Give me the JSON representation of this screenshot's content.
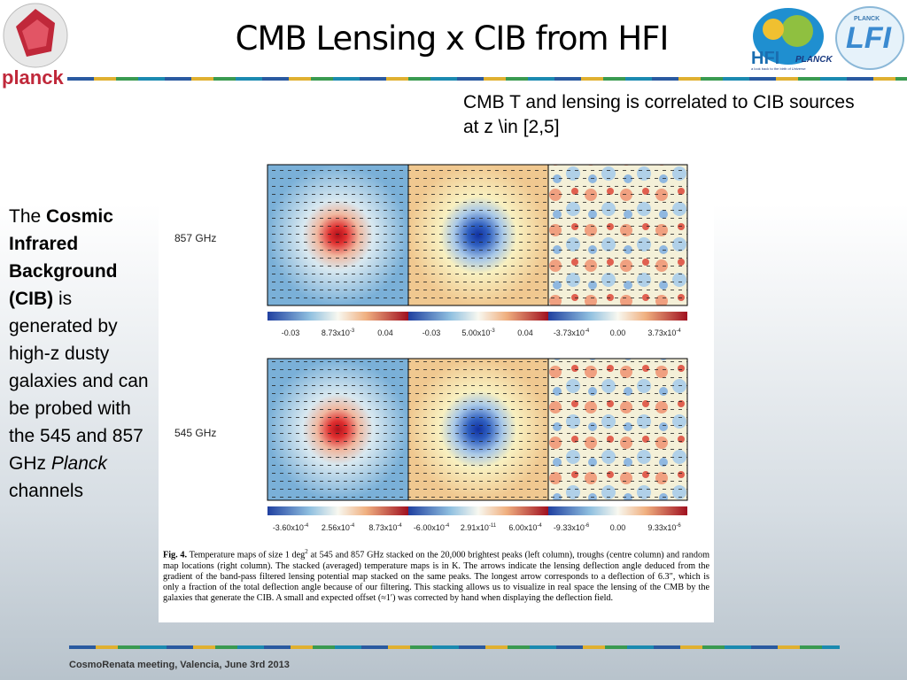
{
  "header": {
    "title": "CMB Lensing x CIB from HFI",
    "logo_left": "planck",
    "logo_hfi": "HFI",
    "logo_hfi_sub": "PLANCK",
    "logo_hfi_tag": "a look back to the birth of Universe",
    "logo_lfi_top": "PLANCK",
    "logo_lfi": "LFI"
  },
  "note": "CMB T and lensing is correlated to CIB sources at z \\in [2,5]",
  "side_text": {
    "intro": "The ",
    "bold": "Cosmic Infrared Background (CIB)",
    "middle": " is generated by high-z dusty galaxies and can be probed with the 545 and 857 GHz ",
    "italic": "Planck",
    "end": " channels"
  },
  "figure": {
    "rows": [
      {
        "label": "857 GHz",
        "colorbars": [
          [
            "-0.03",
            {
              "mantissa": "8.73x10",
              "exp": "-3"
            },
            "0.04"
          ],
          [
            "-0.03",
            {
              "mantissa": "5.00x10",
              "exp": "-3"
            },
            "0.04"
          ],
          [
            {
              "mantissa": "-3.73x10",
              "exp": "-4"
            },
            "0.00",
            {
              "mantissa": "3.73x10",
              "exp": "-4"
            }
          ]
        ]
      },
      {
        "label": "545 GHz",
        "colorbars": [
          [
            {
              "mantissa": "-3.60x10",
              "exp": "-4"
            },
            {
              "mantissa": "2.56x10",
              "exp": "-4"
            },
            {
              "mantissa": "8.73x10",
              "exp": "-4"
            }
          ],
          [
            {
              "mantissa": "-6.00x10",
              "exp": "-4"
            },
            {
              "mantissa": "2.91x10",
              "exp": "-11"
            },
            {
              "mantissa": "6.00x10",
              "exp": "-4"
            }
          ],
          [
            {
              "mantissa": "-9.33x10",
              "exp": "-6"
            },
            "0.00",
            {
              "mantissa": "9.33x10",
              "exp": "-6"
            }
          ]
        ]
      }
    ],
    "caption": {
      "label": "Fig. 4.",
      "text1": " Temperature maps of size 1 deg",
      "sup": "2",
      "text2": " at 545 and 857 GHz stacked on the 20,000 brightest peaks (left column), troughs (centre column) and random map locations (right column). The stacked (averaged) temperature maps is in K. The arrows indicate the lensing deflection angle deduced from the gradient of the band-pass filtered lensing potential map stacked on the same peaks. The longest arrow corresponds to a deflection of 6.3″, which is only a fraction of the total deflection angle because of our filtering. This stacking allows us to visualize in real space the lensing of the CMB by the galaxies that generate the CIB. A small and expected offset (≈1′) was corrected by hand when displaying the deflection field."
    }
  },
  "footer": {
    "text": "CosmoRenata meeting, Valencia, June 3rd 2013"
  }
}
